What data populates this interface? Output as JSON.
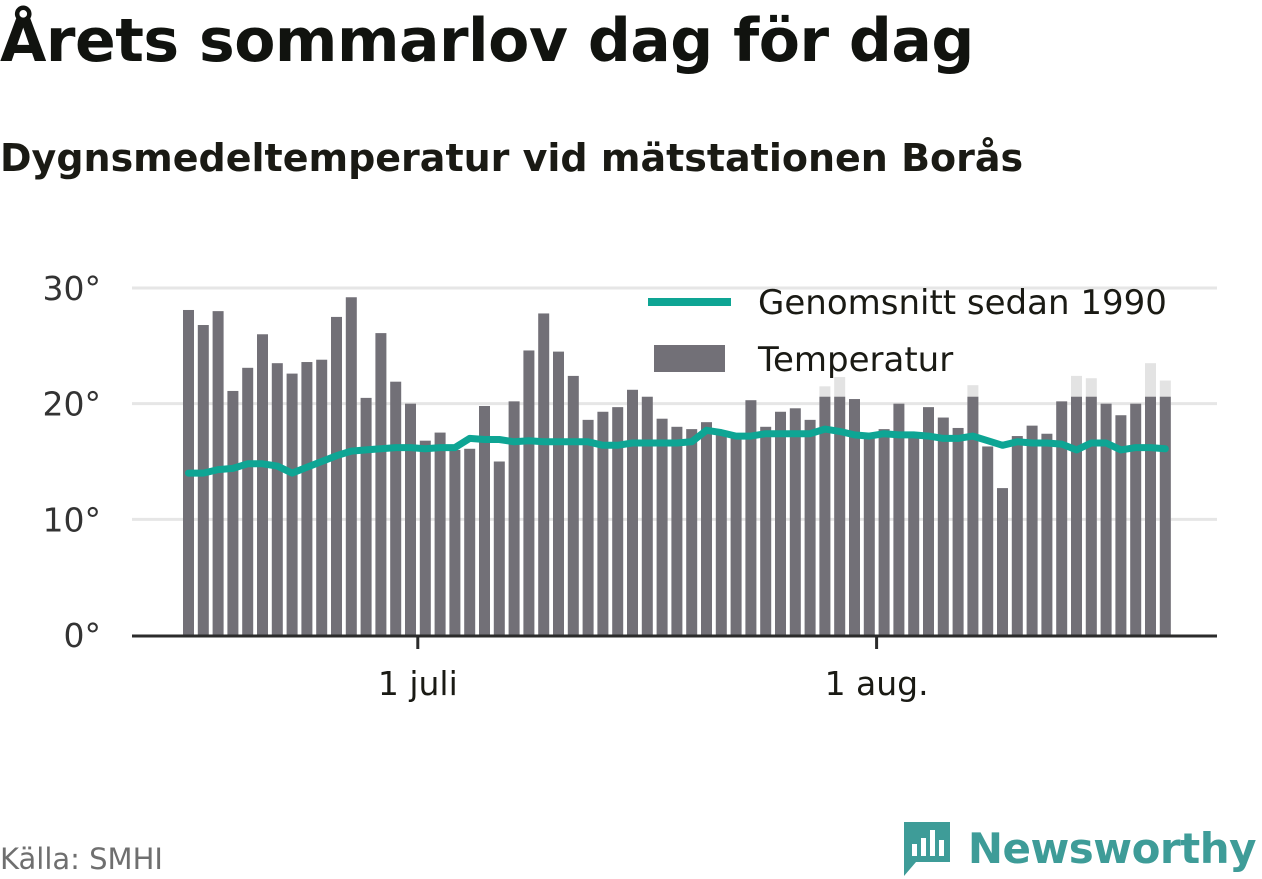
{
  "title": "Årets sommarlov dag för dag",
  "subtitle": "Dygnsmedeltemperatur vid mätstationen Borås",
  "source": "Källa: SMHI",
  "brand": "Newsworthy",
  "colors": {
    "bar": "#727077",
    "bar_ghost": "#e3e3e3",
    "line": "#0ea594",
    "grid": "#e6e6e6",
    "axis": "#2b2b2b",
    "brand": "#3e9c98"
  },
  "chart_data": {
    "type": "bar",
    "ylim": [
      0,
      30
    ],
    "y_ticks": [
      0,
      10,
      20,
      30
    ],
    "y_tick_labels": [
      "0°",
      "10°",
      "20°",
      "30°"
    ],
    "grid": true,
    "legend_position": "top-right",
    "x_ticks": [
      {
        "index": 16,
        "label": "1 juli"
      },
      {
        "index": 47,
        "label": "1 aug."
      }
    ],
    "series": [
      {
        "name": "Temperatur",
        "kind": "bar",
        "values": [
          28.1,
          26.8,
          28.0,
          21.1,
          23.1,
          26.0,
          23.5,
          22.6,
          23.6,
          23.8,
          27.5,
          29.2,
          20.5,
          26.1,
          21.9,
          20.0,
          16.8,
          17.5,
          16.0,
          16.1,
          19.8,
          15.0,
          20.2,
          24.6,
          27.8,
          24.5,
          22.4,
          18.6,
          19.3,
          19.7,
          21.2,
          20.6,
          18.7,
          18.0,
          17.8,
          18.4,
          17.6,
          17.2,
          20.3,
          18.0,
          19.3,
          19.6,
          18.6,
          20.6,
          20.6,
          20.4,
          17.4,
          17.8,
          20.0,
          17.4,
          19.7,
          18.8,
          17.9,
          20.6,
          16.3,
          12.7,
          17.2,
          18.1,
          17.4,
          20.2,
          20.6,
          20.6,
          20.0,
          19.0,
          20.0,
          20.6,
          20.6
        ],
        "ghost_values": [
          null,
          null,
          null,
          null,
          null,
          null,
          null,
          null,
          null,
          null,
          null,
          null,
          null,
          null,
          null,
          null,
          null,
          null,
          null,
          null,
          null,
          null,
          null,
          null,
          null,
          null,
          null,
          null,
          null,
          null,
          20.9,
          null,
          null,
          null,
          null,
          null,
          null,
          null,
          null,
          null,
          null,
          null,
          null,
          21.5,
          22.3,
          null,
          null,
          null,
          null,
          null,
          null,
          null,
          null,
          21.6,
          null,
          null,
          null,
          null,
          null,
          null,
          22.4,
          22.2,
          null,
          null,
          null,
          23.5,
          22.0
        ]
      },
      {
        "name": "Genomsnitt sedan 1990",
        "kind": "line",
        "values": [
          14.0,
          14.0,
          14.3,
          14.4,
          14.8,
          14.8,
          14.6,
          14.0,
          14.5,
          15.0,
          15.5,
          15.9,
          16.0,
          16.1,
          16.2,
          16.2,
          16.1,
          16.2,
          16.2,
          17.0,
          16.9,
          16.9,
          16.7,
          16.8,
          16.7,
          16.7,
          16.7,
          16.7,
          16.4,
          16.4,
          16.6,
          16.6,
          16.6,
          16.6,
          16.7,
          17.7,
          17.5,
          17.2,
          17.2,
          17.4,
          17.4,
          17.4,
          17.4,
          17.8,
          17.6,
          17.3,
          17.2,
          17.4,
          17.3,
          17.3,
          17.2,
          17.0,
          17.0,
          17.2,
          16.8,
          16.4,
          16.7,
          16.6,
          16.6,
          16.5,
          16.0,
          16.6,
          16.6,
          16.0,
          16.2,
          16.2,
          16.1
        ]
      }
    ]
  }
}
